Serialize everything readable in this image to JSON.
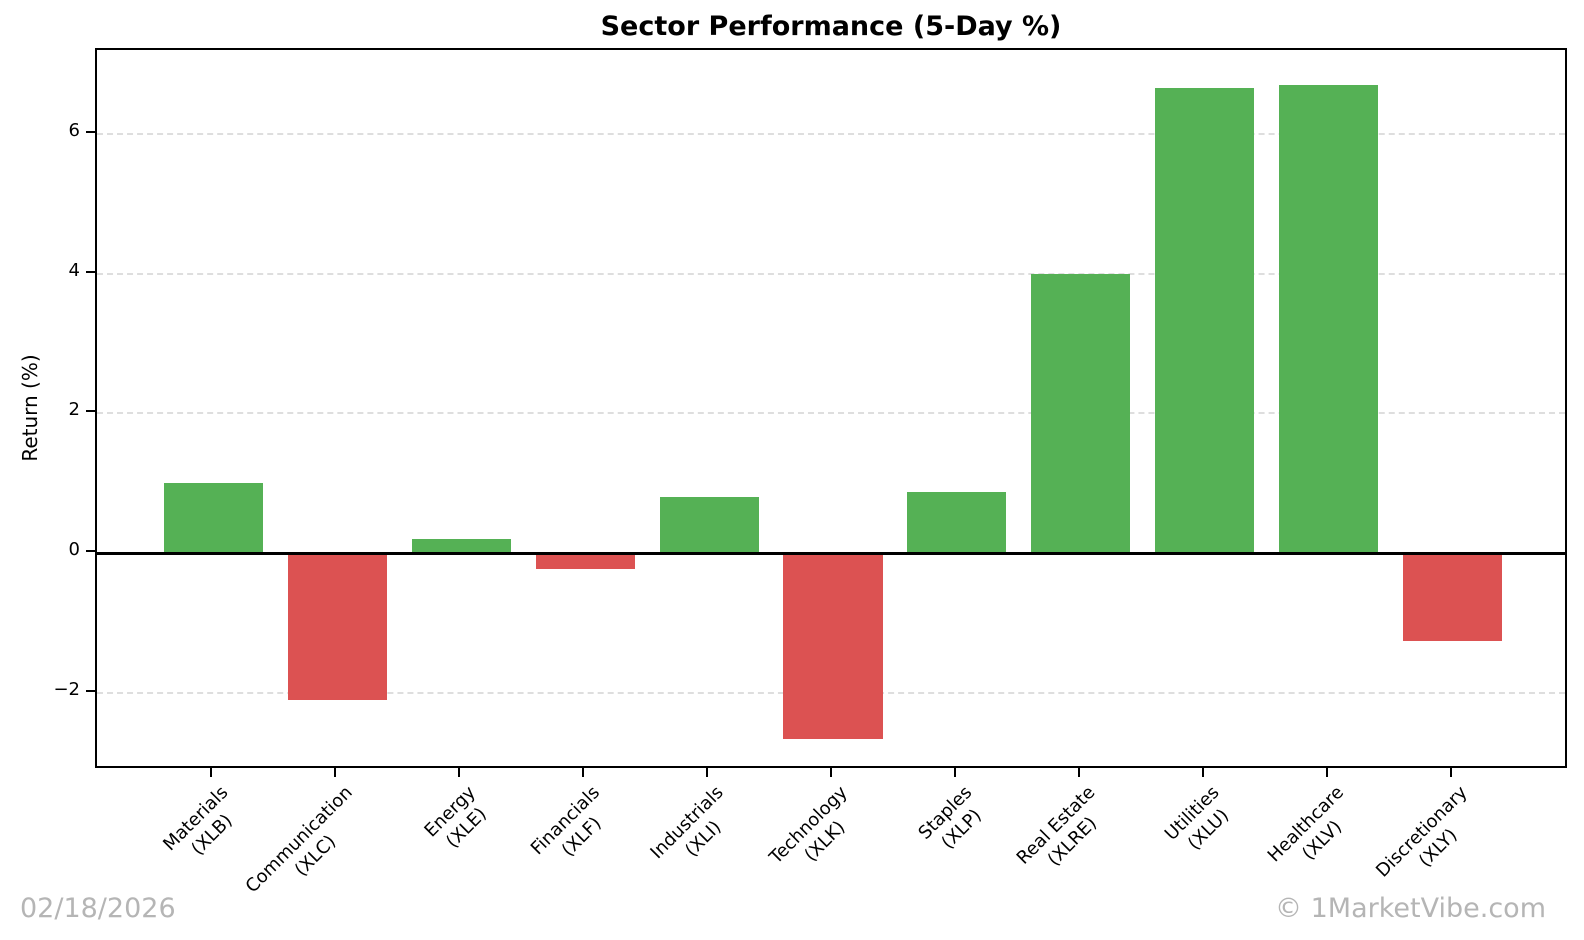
{
  "title": "Sector Performance (5-Day %)",
  "chart_data": {
    "type": "bar",
    "title": "Sector Performance (5-Day %)",
    "ylabel": "Return (%)",
    "xlabel": "",
    "categories": [
      "Materials",
      "Communication",
      "Energy",
      "Financials",
      "Industrials",
      "Technology",
      "Staples",
      "Real Estate",
      "Utilities",
      "Healthcare",
      "Discretionary"
    ],
    "tickers": [
      "(XLB)",
      "(XLC)",
      "(XLE)",
      "(XLF)",
      "(XLI)",
      "(XLK)",
      "(XLP)",
      "(XLRE)",
      "(XLU)",
      "(XLV)",
      "(XLY)"
    ],
    "values": [
      1.0,
      -2.1,
      0.2,
      -0.22,
      0.8,
      -2.65,
      0.88,
      4.0,
      6.65,
      6.7,
      -1.25
    ],
    "yticks": [
      -2,
      0,
      2,
      4,
      6
    ],
    "ylim": [
      -3.1,
      7.2
    ],
    "grid": "horizontal-dashed",
    "legend": null,
    "positive_color": "#55b155",
    "negative_color": "#dc5252",
    "zero_line_color": "#000000"
  },
  "footer": {
    "date": "02/18/2026",
    "credit": "© 1MarketVibe.com"
  }
}
